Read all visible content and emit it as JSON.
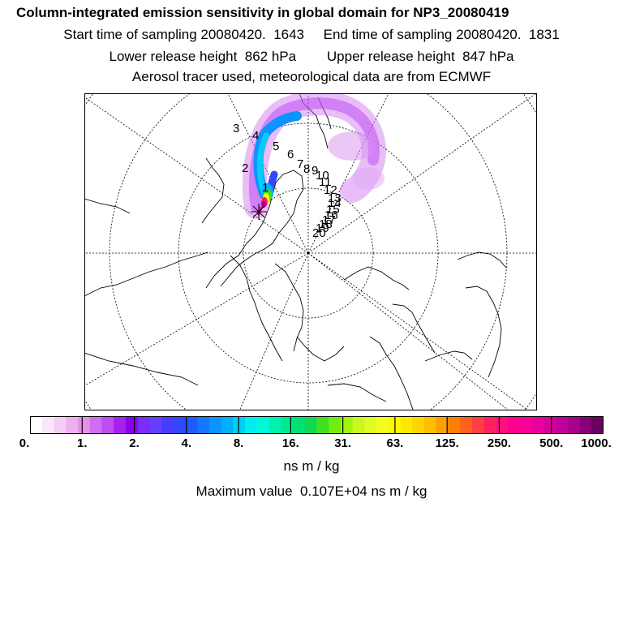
{
  "header": {
    "title": "Column-integrated emission sensitivity in global domain for NP3_20080419",
    "sampling_line": "Start time of sampling 20080420.  1643     End time of sampling 20080420.  1831",
    "release_line": "Lower release height  862 hPa        Upper release height  847 hPa",
    "info_line": "Aerosol tracer used, meteorological data are from ECMWF"
  },
  "map": {
    "trajectory_labels": [
      "3",
      "4",
      "5",
      "6",
      "7",
      "8",
      "9",
      "10",
      "11",
      "12",
      "13",
      "14",
      "15",
      "16",
      "17",
      "18",
      "19",
      "20",
      "2",
      "1"
    ]
  },
  "colorbar": {
    "colors": [
      "#ffffff",
      "#fbe6fb",
      "#f6cdf6",
      "#f0b0f0",
      "#e890e8",
      "#cf6ef0",
      "#c04cf4",
      "#a820f0",
      "#8c00f0",
      "#7a2cf8",
      "#6440ff",
      "#4a3cff",
      "#3248ff",
      "#1e5cff",
      "#1478ff",
      "#0a94ff",
      "#00b0ff",
      "#00d0f8",
      "#00eef0",
      "#00f8d8",
      "#00f0b0",
      "#00e890",
      "#00e070",
      "#10d850",
      "#40e020",
      "#70ec10",
      "#a0f410",
      "#c8f820",
      "#e0fc20",
      "#f4fc20",
      "#fff800",
      "#ffe800",
      "#ffd400",
      "#ffbc00",
      "#ffa000",
      "#ff8000",
      "#ff6020",
      "#ff4040",
      "#ff2060",
      "#ff1080",
      "#ff0090",
      "#f80098",
      "#e8009c",
      "#d8009c",
      "#c0009c",
      "#a8008c",
      "#880078",
      "#680060"
    ],
    "tick_labels": [
      "0.",
      "1.",
      "2.",
      "4.",
      "8.",
      "16.",
      "31.",
      "63.",
      "125.",
      "250.",
      "500.",
      "1000."
    ],
    "units": "ns m / kg"
  },
  "footer": {
    "max_value": "Maximum value  0.107E+04 ns m / kg"
  }
}
